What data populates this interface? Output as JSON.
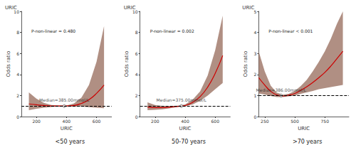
{
  "chart_data": [
    {
      "type": "line",
      "title": "URIC",
      "subtitle": "<50 years",
      "x_label": "URIC",
      "y_label": "Odds ratio",
      "annotations": [
        "P-non-linear = 0.480"
      ],
      "median": 385,
      "median_text": "Median=385.00mmol/L",
      "reference_line": 1,
      "color": "#cc0000",
      "grid": false,
      "xlim": [
        100,
        700
      ],
      "xticks": [
        200,
        400,
        600
      ],
      "ylim": [
        0,
        10
      ],
      "yticks": [
        0,
        2,
        4,
        6,
        8,
        10
      ],
      "x": [
        150,
        200,
        250,
        300,
        350,
        400,
        450,
        500,
        550,
        600,
        650
      ],
      "values": [
        1.2,
        1.12,
        1.05,
        1.01,
        1.0,
        1.0,
        1.05,
        1.25,
        1.6,
        2.2,
        3.0
      ],
      "lower": [
        0.6,
        0.75,
        0.85,
        0.92,
        0.96,
        0.97,
        0.95,
        0.95,
        0.9,
        0.85,
        0.8
      ],
      "upper": [
        2.3,
        1.7,
        1.3,
        1.1,
        1.04,
        1.04,
        1.25,
        1.8,
        3.0,
        5.2,
        8.6
      ]
    },
    {
      "type": "line",
      "title": "URIC",
      "subtitle": "50-70 years",
      "x_label": "URIC",
      "y_label": "Odds ratio",
      "annotations": [
        "P-non-linear = 0.002"
      ],
      "median": 375,
      "median_text": "Median=375.00mmol/L",
      "reference_line": 1,
      "color": "#cc0000",
      "grid": false,
      "xlim": [
        100,
        700
      ],
      "xticks": [
        200,
        400,
        600
      ],
      "ylim": [
        0,
        10
      ],
      "yticks": [
        0,
        2,
        4,
        6,
        8,
        10
      ],
      "x": [
        150,
        200,
        250,
        300,
        350,
        400,
        450,
        500,
        550,
        600,
        650
      ],
      "values": [
        0.9,
        0.85,
        0.85,
        0.9,
        0.97,
        1.05,
        1.35,
        1.9,
        2.8,
        4.1,
        5.8
      ],
      "lower": [
        0.6,
        0.65,
        0.7,
        0.8,
        0.92,
        0.98,
        1.15,
        1.5,
        2.0,
        2.6,
        3.2
      ],
      "upper": [
        1.35,
        1.1,
        1.02,
        1.0,
        1.03,
        1.15,
        1.6,
        2.4,
        3.9,
        6.3,
        9.6
      ]
    },
    {
      "type": "line",
      "title": "URIC",
      "subtitle": ">70 years",
      "x_label": "URIC",
      "y_label": "Odds ratio",
      "annotations": [
        "P-non-linear < 0.001"
      ],
      "median": 386,
      "median_text": "Median=386.00mmol/L",
      "reference_line": 1,
      "color": "#cc0000",
      "grid": false,
      "xlim": [
        200,
        950
      ],
      "xticks": [
        250,
        500,
        750
      ],
      "ylim": [
        0,
        5
      ],
      "yticks": [
        0,
        1,
        2,
        3,
        4,
        5
      ],
      "x": [
        200,
        250,
        300,
        350,
        400,
        450,
        500,
        550,
        600,
        650,
        700,
        750,
        800,
        850,
        900
      ],
      "values": [
        1.85,
        1.5,
        1.2,
        1.03,
        0.98,
        1.02,
        1.1,
        1.25,
        1.42,
        1.62,
        1.85,
        2.1,
        2.4,
        2.75,
        3.1
      ],
      "lower": [
        1.1,
        1.05,
        0.98,
        0.93,
        0.93,
        0.96,
        1.0,
        1.08,
        1.15,
        1.22,
        1.3,
        1.35,
        1.4,
        1.45,
        1.5
      ],
      "upper": [
        3.1,
        2.15,
        1.47,
        1.14,
        1.04,
        1.08,
        1.22,
        1.45,
        1.75,
        2.15,
        2.6,
        3.1,
        3.7,
        4.4,
        5.0
      ]
    }
  ]
}
